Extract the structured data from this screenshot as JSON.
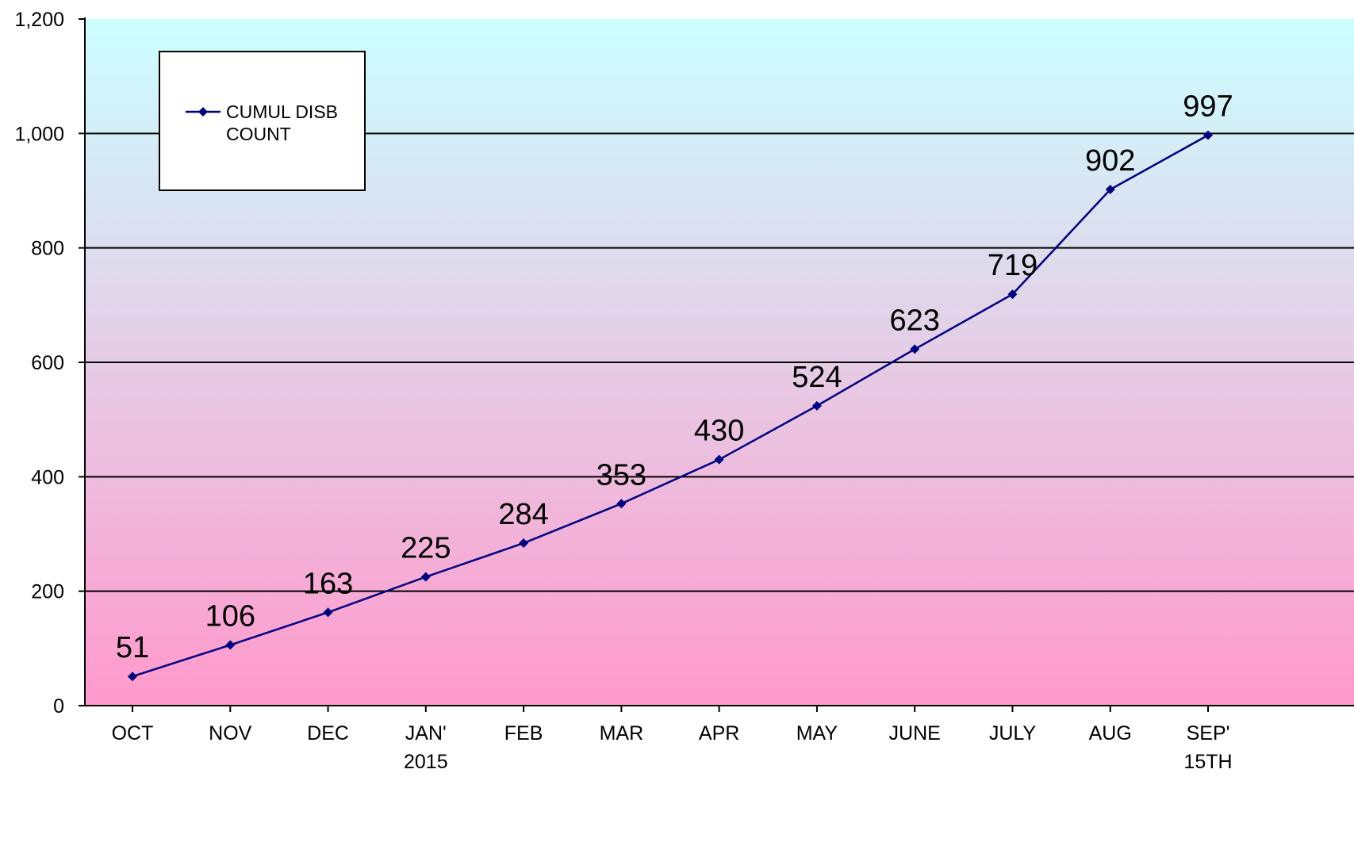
{
  "chart_data": {
    "type": "line",
    "categories": [
      [
        "OCT"
      ],
      [
        "NOV"
      ],
      [
        "DEC"
      ],
      [
        "JAN'",
        "2015"
      ],
      [
        "FEB"
      ],
      [
        "MAR"
      ],
      [
        "APR"
      ],
      [
        "MAY"
      ],
      [
        "JUNE"
      ],
      [
        "JULY"
      ],
      [
        "AUG"
      ],
      [
        "SEP'",
        "15TH"
      ]
    ],
    "series": [
      {
        "name": "CUMUL DISB COUNT",
        "legend_lines": [
          "CUMUL DISB",
          "COUNT"
        ],
        "values": [
          51,
          106,
          163,
          225,
          284,
          353,
          430,
          524,
          623,
          719,
          902,
          997
        ],
        "color": "#000080"
      }
    ],
    "data_labels": [
      "51",
      "106",
      "163",
      "225",
      "284",
      "353",
      "430",
      "524",
      "623",
      "719",
      "902",
      "997"
    ],
    "yticks": [
      0,
      200,
      400,
      600,
      800,
      1000,
      1200
    ],
    "ytick_labels": [
      "0",
      "200",
      "400",
      "600",
      "800",
      "1,000",
      "1,200"
    ],
    "ylim": [
      0,
      1200
    ],
    "title": "",
    "xlabel": "",
    "ylabel": "",
    "grid": true,
    "legend_position": "top-left",
    "background_gradient": {
      "top": "#ccffff",
      "bottom": "#ff99cc"
    },
    "gridline_color": "#000000",
    "axis_color": "#000000"
  }
}
